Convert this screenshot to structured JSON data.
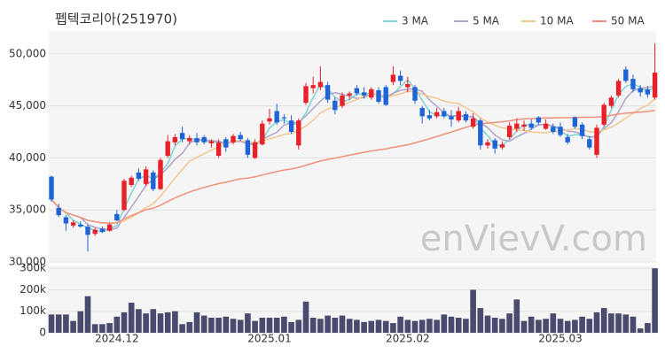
{
  "chart_data": [
    {
      "type": "candlestick",
      "title": "펩텍코리아(251970)",
      "watermark": "enVievV.com",
      "categories": [
        null,
        null,
        null,
        null,
        null,
        null,
        null,
        null,
        null,
        "2024.12",
        null,
        null,
        null,
        null,
        null,
        null,
        null,
        null,
        null,
        null,
        null,
        null,
        null,
        null,
        null,
        null,
        null,
        null,
        null,
        null,
        "2025.01",
        null,
        null,
        null,
        null,
        null,
        null,
        null,
        null,
        null,
        null,
        null,
        null,
        null,
        null,
        null,
        null,
        null,
        null,
        "2025.02",
        null,
        null,
        null,
        null,
        null,
        null,
        null,
        null,
        null,
        null,
        null,
        null,
        null,
        null,
        null,
        null,
        null,
        null,
        null,
        null,
        "2025.03",
        null,
        null,
        null,
        null,
        null,
        null,
        null,
        null,
        null,
        null,
        null,
        null,
        null
      ],
      "open": [
        38200,
        35200,
        34300,
        33500,
        33600,
        33400,
        32700,
        33200,
        33000,
        34600,
        35000,
        37400,
        38600,
        37500,
        38600,
        37000,
        40200,
        41500,
        42400,
        41600,
        41900,
        42000,
        41400,
        40200,
        41800,
        41500,
        42200,
        41700,
        40000,
        41300,
        43500,
        44500,
        43900,
        43600,
        41200,
        45300,
        46700,
        46800,
        47000,
        45500,
        45000,
        46000,
        46700,
        46300,
        45800,
        46500,
        46800,
        47300,
        47900,
        46800,
        46800,
        44800,
        44100,
        44000,
        44500,
        44000,
        43600,
        44200,
        43000,
        43600,
        41200,
        41700,
        41000,
        42000,
        42800,
        43000,
        43300,
        43900,
        42800,
        43000,
        43000,
        42000,
        43900,
        43200,
        41800,
        40300,
        43200,
        45000,
        46000,
        48500,
        47600,
        46700,
        46600,
        45800
      ],
      "high": [
        38300,
        35600,
        34500,
        34000,
        33900,
        33600,
        33300,
        33400,
        33700,
        35000,
        38000,
        38300,
        39000,
        39200,
        38800,
        40000,
        42200,
        42300,
        43000,
        42200,
        42400,
        42200,
        41800,
        41800,
        42000,
        42300,
        42500,
        41900,
        41800,
        43600,
        44700,
        45200,
        44200,
        44100,
        43800,
        47200,
        47800,
        48800,
        47300,
        45800,
        46300,
        46400,
        47000,
        46800,
        46800,
        46800,
        47000,
        48800,
        48400,
        47800,
        47000,
        45000,
        44600,
        44800,
        44800,
        44600,
        44900,
        44500,
        44300,
        43800,
        41800,
        41900,
        41600,
        43400,
        43800,
        43600,
        43700,
        44000,
        43700,
        43300,
        43400,
        42300,
        44000,
        43400,
        42100,
        43200,
        45300,
        46000,
        47600,
        48800,
        48000,
        47000,
        46900,
        51000
      ],
      "low": [
        35800,
        34300,
        33000,
        33300,
        33300,
        31000,
        32500,
        32800,
        32900,
        33900,
        34900,
        37200,
        37800,
        37300,
        36800,
        36900,
        40000,
        41200,
        41500,
        41300,
        41200,
        41300,
        41000,
        40000,
        40600,
        41300,
        41600,
        40000,
        39900,
        41200,
        43200,
        43200,
        43300,
        42300,
        40800,
        45100,
        46200,
        46500,
        45300,
        44200,
        44800,
        45600,
        46000,
        45700,
        45600,
        45200,
        45000,
        47000,
        47000,
        46300,
        45200,
        43300,
        43600,
        43800,
        43800,
        43000,
        43400,
        43400,
        42800,
        40800,
        40900,
        40400,
        40800,
        41800,
        42500,
        42600,
        42700,
        43200,
        42700,
        42300,
        42000,
        41300,
        42800,
        41800,
        40800,
        40000,
        43000,
        44800,
        45800,
        47200,
        46300,
        45900,
        45800,
        45600
      ],
      "close": [
        36000,
        34500,
        33700,
        33800,
        33400,
        32600,
        33100,
        32900,
        33600,
        34000,
        37800,
        38100,
        38000,
        38900,
        37000,
        39800,
        41600,
        42000,
        41800,
        41900,
        41500,
        41500,
        41600,
        41500,
        41000,
        42100,
        41800,
        40300,
        41500,
        43300,
        43800,
        43400,
        43800,
        42500,
        43600,
        46900,
        47000,
        47300,
        45600,
        44600,
        46000,
        46200,
        46200,
        46000,
        46600,
        45400,
        45100,
        48000,
        47400,
        47100,
        45500,
        44000,
        43800,
        44400,
        44000,
        43700,
        44500,
        43600,
        43800,
        41200,
        41500,
        40900,
        41300,
        43100,
        43300,
        43200,
        42900,
        43400,
        43300,
        42500,
        42200,
        41500,
        43000,
        42100,
        41000,
        42900,
        45100,
        45800,
        47400,
        47400,
        46600,
        46300,
        46100,
        48200
      ],
      "up_color": "#e8202a",
      "down_color": "#1e64d8",
      "ma": [
        {
          "name": "3 MA",
          "period": 3,
          "color": "#7fd2d6"
        },
        {
          "name": "5 MA",
          "period": 5,
          "color": "#b0a2c8"
        },
        {
          "name": "10 MA",
          "period": 10,
          "color": "#f3c690"
        },
        {
          "name": "50 MA",
          "period": 50,
          "color": "#f0907a"
        }
      ],
      "ylim": [
        30000,
        52200
      ],
      "yticks": [
        {
          "value": 30000,
          "label": "30,000"
        },
        {
          "value": 35000,
          "label": "35,000"
        },
        {
          "value": 40000,
          "label": "40,000"
        },
        {
          "value": 45000,
          "label": "45,000"
        },
        {
          "value": 50000,
          "label": "50,000"
        }
      ],
      "grid": true
    },
    {
      "type": "bar",
      "color": "#4a4a6e",
      "values": [
        85000,
        85000,
        85000,
        55000,
        100000,
        170000,
        40000,
        40000,
        45000,
        75000,
        95000,
        140000,
        110000,
        90000,
        110000,
        90000,
        95000,
        100000,
        40000,
        50000,
        95000,
        80000,
        70000,
        70000,
        75000,
        65000,
        60000,
        90000,
        55000,
        70000,
        70000,
        70000,
        75000,
        50000,
        60000,
        145000,
        70000,
        65000,
        80000,
        70000,
        80000,
        65000,
        60000,
        50000,
        55000,
        60000,
        55000,
        45000,
        75000,
        60000,
        55000,
        60000,
        65000,
        60000,
        85000,
        75000,
        70000,
        65000,
        200000,
        115000,
        80000,
        70000,
        65000,
        90000,
        155000,
        55000,
        75000,
        60000,
        65000,
        90000,
        65000,
        55000,
        60000,
        75000,
        65000,
        95000,
        115000,
        90000,
        90000,
        85000,
        75000,
        20000,
        45000,
        300000
      ],
      "ylim": [
        0,
        313000
      ],
      "yticks": [
        0,
        {
          "value": 100000,
          "label": "100k"
        },
        {
          "value": 200000,
          "label": "200k"
        },
        {
          "value": 300000,
          "label": "300k"
        }
      ],
      "grid": true
    }
  ]
}
